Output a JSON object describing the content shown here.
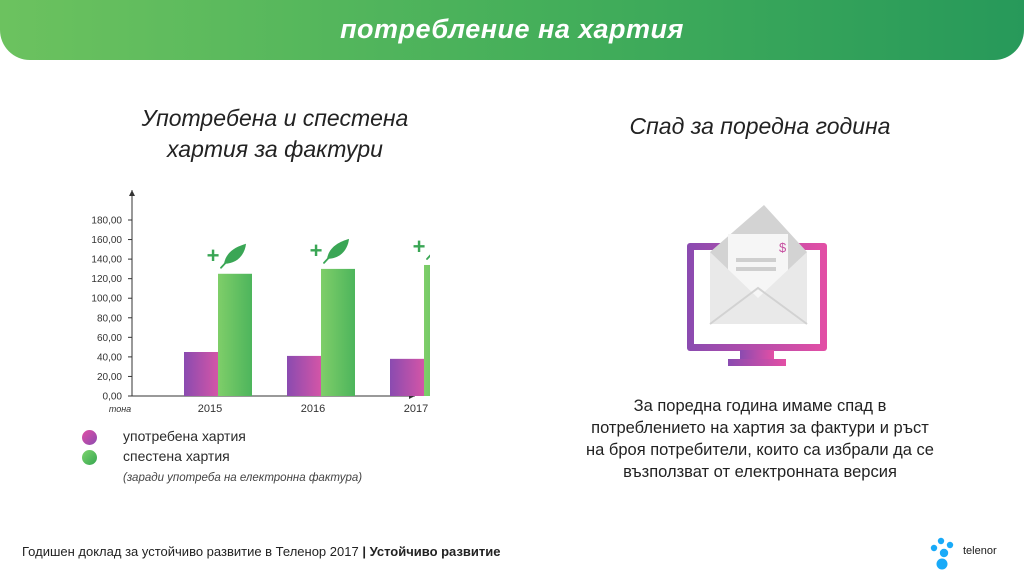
{
  "header": {
    "title": "потребление на хартия"
  },
  "left_section": {
    "title_line1": "Употребена и спестена",
    "title_line2": "хартия за фактури"
  },
  "right_section": {
    "title": "Спад за поредна година",
    "description_lines": [
      "За поредна година имаме спад в",
      "потреблението на хартия за фактури и ръст",
      "на броя потребители, които са избрали да се",
      "възползват от електронната версия"
    ],
    "dollar_sign": "$"
  },
  "chart_data": {
    "type": "bar",
    "categories": [
      "2015",
      "2016",
      "2017"
    ],
    "series": [
      {
        "name": "употребена хартия",
        "values": [
          45,
          41,
          38
        ],
        "color": "#d455a7"
      },
      {
        "name": "спестена хартия",
        "values": [
          125,
          130,
          134
        ],
        "color": "#4db55c"
      }
    ],
    "ylim": [
      0,
      180
    ],
    "yticks": [
      "180,00",
      "160,00",
      "140,00",
      "120,00",
      "100,00",
      "80,00",
      "60,00",
      "40,00",
      "20,00",
      "0,00"
    ],
    "yunit": "тона",
    "annotation": "+",
    "legend_note": "(заради употреба на електронна фактура)",
    "legend_position": "bottom-left",
    "grid": false
  },
  "footer": {
    "text": "Годишен доклад за устойчиво развитие в Теленор 2017",
    "separator": "|",
    "bold": "Устойчиво развитие"
  },
  "brand": {
    "logo_text": "telenor",
    "logo_color": "#19aaf8"
  }
}
